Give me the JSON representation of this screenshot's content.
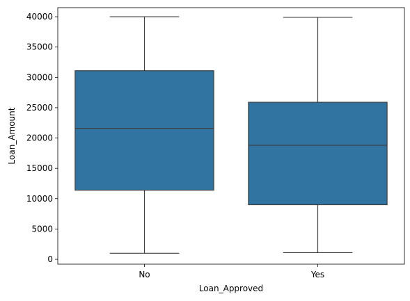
{
  "chart_data": {
    "type": "box",
    "xlabel": "Loan_Approved",
    "ylabel": "Loan_Amount",
    "categories": [
      "No",
      "Yes"
    ],
    "ylim": [
      -800,
      41500
    ],
    "yticks": [
      0,
      5000,
      10000,
      15000,
      20000,
      25000,
      30000,
      35000,
      40000
    ],
    "ytick_labels": [
      "0",
      "5000",
      "10000",
      "15000",
      "20000",
      "25000",
      "30000",
      "35000",
      "40000"
    ],
    "boxes": [
      {
        "category": "No",
        "whisker_low": 1000,
        "q1": 11400,
        "median": 21600,
        "q3": 31100,
        "whisker_high": 40000
      },
      {
        "category": "Yes",
        "whisker_low": 1100,
        "q1": 9000,
        "median": 18800,
        "q3": 25900,
        "whisker_high": 39900
      }
    ],
    "box_color": "#3274a1",
    "line_color": "#3f3f3f",
    "grid": false
  }
}
